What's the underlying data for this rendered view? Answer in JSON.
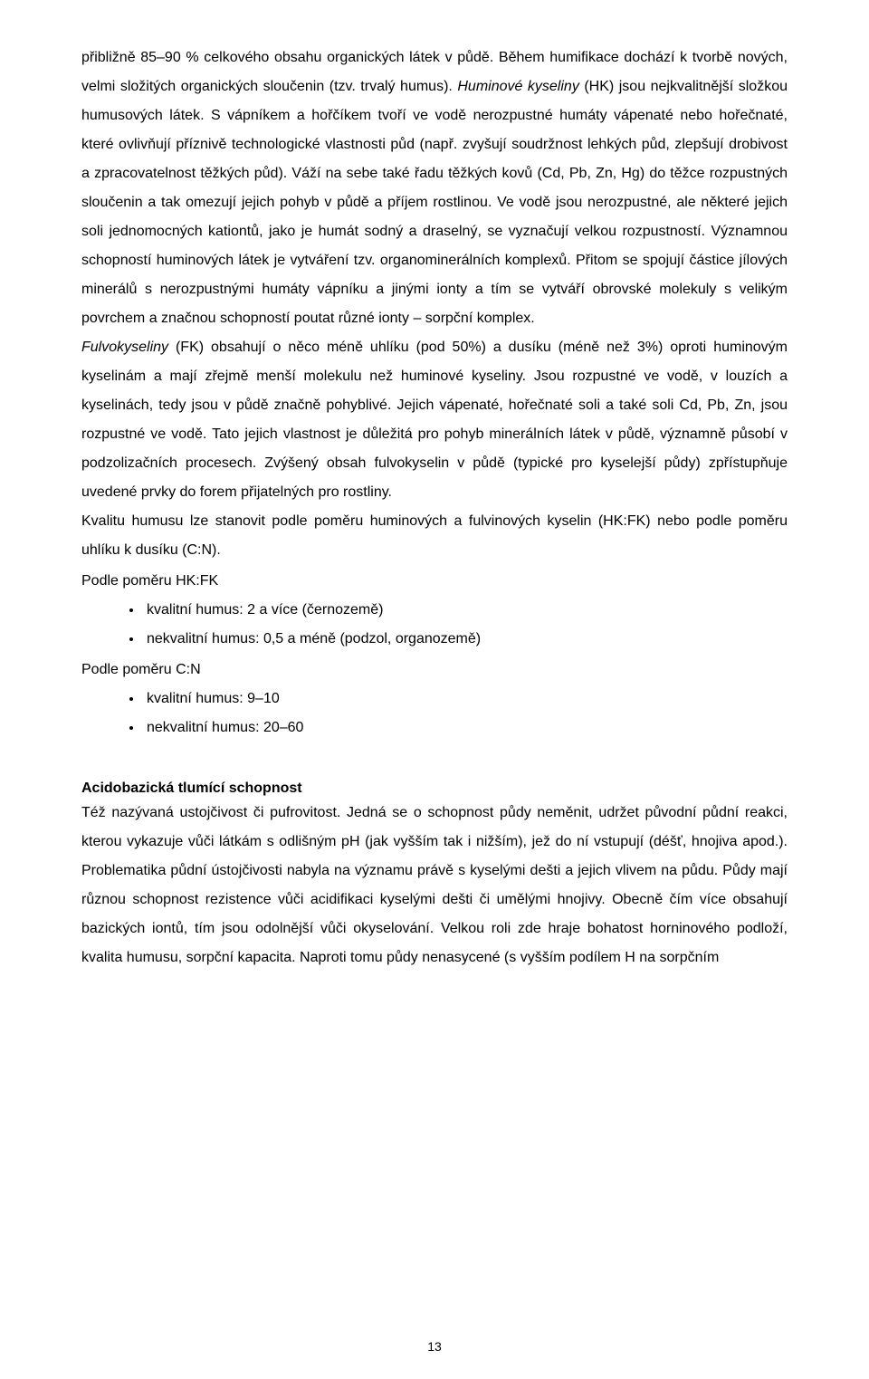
{
  "para1": {
    "seg1": "přibližně 85–90 % celkového obsahu organických látek v půdě. Během humifikace dochází k tvorbě nových, velmi složitých organických sloučenin (tzv. trvalý humus). ",
    "em1": "Huminové kyseliny",
    "seg2": " (HK) jsou nejkvalitnější složkou humusových látek. S vápníkem a hořčíkem tvoří ve vodě nerozpustné humáty vápenaté nebo hořečnaté, které ovlivňují příznivě technologické vlastnosti půd (např. zvyšují soudržnost lehkých půd, zlepšují drobivost a zpracovatelnost těžkých půd). Váží na sebe také řadu těžkých kovů (Cd, Pb, Zn, Hg) do těžce rozpustných sloučenin a tak omezují jejich pohyb v půdě a příjem rostlinou. Ve vodě jsou nerozpustné, ale některé jejich soli jednomocných kationtů, jako je humát sodný a draselný, se vyznačují velkou rozpustností. Významnou schopností huminových látek je vytváření tzv. organominerálních komplexů. Přitom se spojují částice jílových minerálů s nerozpustnými humáty vápníku a jinými ionty a tím se vytváří obrovské molekuly s velikým povrchem a značnou schopností poutat různé ionty – sorpční komplex."
  },
  "para2": {
    "em1": "Fulvokyseliny",
    "seg1": " (FK) obsahují o něco méně uhlíku (pod 50%) a dusíku (méně než 3%) oproti huminovým kyselinám a mají zřejmě menší molekulu než huminové kyseliny. Jsou rozpustné ve vodě, v louzích a kyselinách, tedy jsou v půdě značně pohyblivé. Jejich vápenaté, hořečnaté soli a také soli Cd, Pb, Zn, jsou rozpustné ve vodě. Tato jejich vlastnost je důležitá pro pohyb minerálních látek v půdě, významně působí v podzolizačních procesech. Zvýšený obsah fulvokyselin v půdě (typické pro kyselejší půdy) zpřístupňuje uvedené prvky do forem přijatelných pro rostliny."
  },
  "para3": "Kvalitu humusu lze stanovit podle poměru huminových a fulvinových kyselin (HK:FK) nebo podle poměru uhlíku k dusíku (C:N).",
  "hkfk_label": "Podle poměru HK:FK",
  "hkfk_items": [
    "kvalitní humus: 2 a více (černozemě)",
    "nekvalitní humus: 0,5 a méně (podzol, organozemě)"
  ],
  "cn_label": "Podle poměru C:N",
  "cn_items": [
    "kvalitní humus: 9–10",
    "nekvalitní humus: 20–60"
  ],
  "heading2": "Acidobazická tlumící schopnost",
  "para4": "Též nazývaná ustojčivost či pufrovitost. Jedná se o schopnost půdy neměnit, udržet původní půdní reakci, kterou vykazuje vůči látkám s odlišným pH (jak vyšším tak i nižším), jež do ní vstupují (déšť, hnojiva apod.). Problematika půdní ústojčivosti nabyla na významu právě s kyselými dešti a jejich vlivem na půdu. Půdy mají různou schopnost rezistence vůči acidifikaci kyselými dešti či umělými hnojivy. Obecně čím více obsahují bazických iontů, tím jsou odolnější vůči okyselování. Velkou roli zde hraje bohatost horninového podloží, kvalita humusu, sorpční kapacita. Naproti tomu půdy nenasycené (s vyšším podílem H na sorpčním",
  "page_number": "13"
}
